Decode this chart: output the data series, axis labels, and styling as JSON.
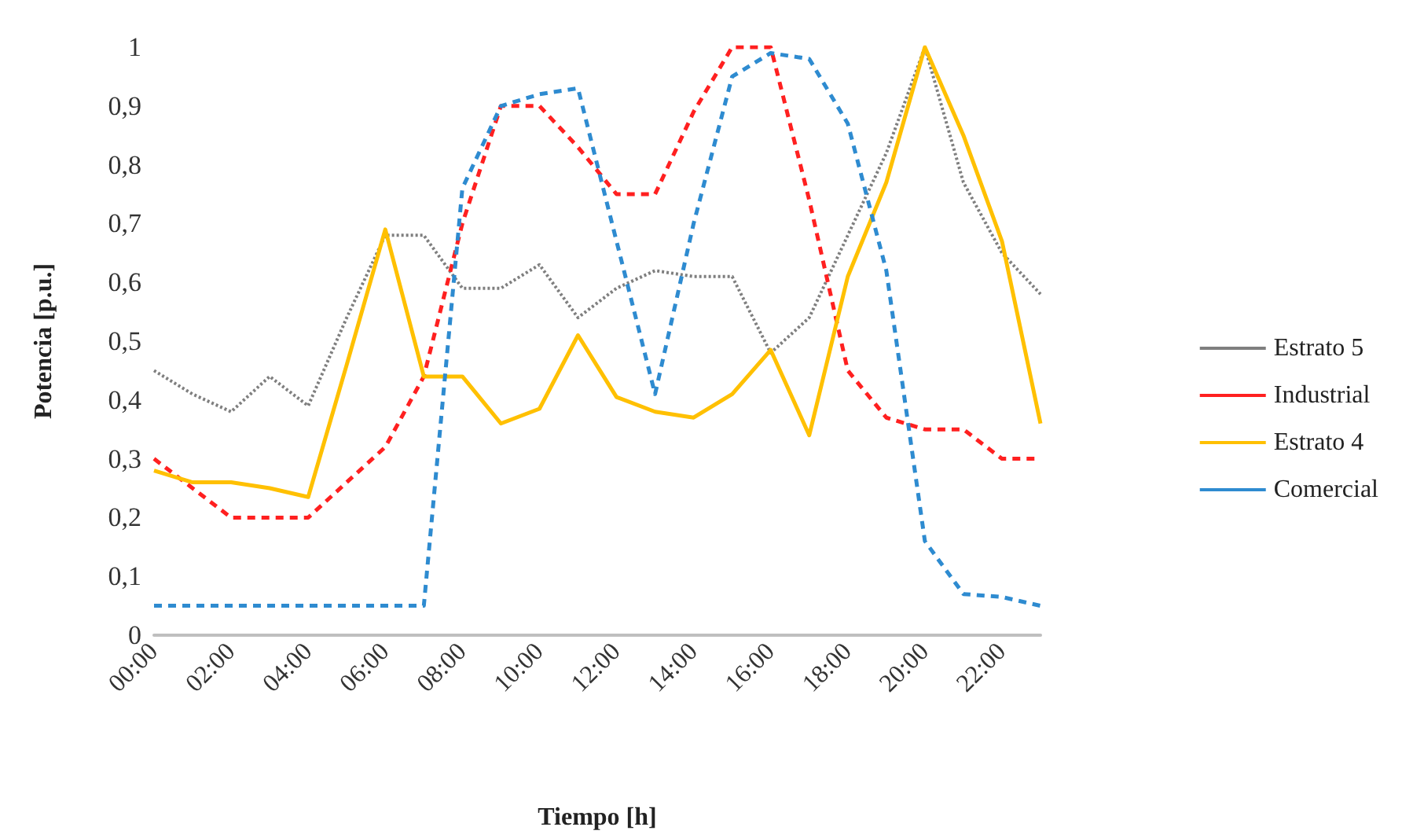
{
  "chart_data": {
    "type": "line",
    "xlabel": "Tiempo [h]",
    "ylabel": "Potencia [p.u.]",
    "categories": [
      "00:00",
      null,
      "02:00",
      null,
      "04:00",
      null,
      "06:00",
      null,
      "08:00",
      null,
      "10:00",
      null,
      "12:00",
      null,
      "14:00",
      null,
      "16:00",
      null,
      "18:00",
      null,
      "20:00",
      null,
      "22:00",
      null
    ],
    "ylim": [
      0,
      1
    ],
    "yticks": [
      0,
      {
        "value": 0.1,
        "label": "0,1"
      },
      {
        "value": 0.2,
        "label": "0,2"
      },
      {
        "value": 0.3,
        "label": "0,3"
      },
      {
        "value": 0.4,
        "label": "0,4"
      },
      {
        "value": 0.5,
        "label": "0,5"
      },
      {
        "value": 0.6,
        "label": "0,6"
      },
      {
        "value": 0.7,
        "label": "0,7"
      },
      {
        "value": 0.8,
        "label": "0,8"
      },
      {
        "value": 0.9,
        "label": "0,9"
      },
      1
    ],
    "grid": false,
    "legend": "right",
    "marker": "none",
    "series": [
      {
        "name": "Estrato 5",
        "color": "#7f7f7f",
        "line_style": "dotted",
        "values": [
          0.45,
          0.41,
          0.38,
          0.44,
          0.39,
          0.54,
          0.68,
          0.68,
          0.59,
          0.59,
          0.63,
          0.54,
          0.59,
          0.62,
          0.61,
          0.61,
          0.48,
          0.54,
          0.68,
          0.82,
          1.0,
          0.77,
          0.65,
          0.58
        ]
      },
      {
        "name": "Industrial",
        "color": "#ff2020",
        "line_style": "dashed",
        "values": [
          0.3,
          0.25,
          0.2,
          0.2,
          0.2,
          0.26,
          0.32,
          0.44,
          0.7,
          0.9,
          0.9,
          0.83,
          0.75,
          0.75,
          0.89,
          1.0,
          1.0,
          0.74,
          0.45,
          0.37,
          0.35,
          0.35,
          0.3,
          0.3
        ]
      },
      {
        "name": "Estrato 4",
        "color": "#ffc000",
        "line_style": "solid",
        "values": [
          0.28,
          0.26,
          0.26,
          0.25,
          0.235,
          0.46,
          0.69,
          0.44,
          0.44,
          0.36,
          0.385,
          0.51,
          0.405,
          0.38,
          0.37,
          0.41,
          0.485,
          0.34,
          0.61,
          0.77,
          1.0,
          0.85,
          0.67,
          0.36
        ]
      },
      {
        "name": "Comercial",
        "color": "#2e8bd0",
        "line_style": "dashed",
        "values": [
          0.05,
          0.05,
          0.05,
          0.05,
          0.05,
          0.05,
          0.05,
          0.05,
          0.76,
          0.9,
          0.92,
          0.93,
          0.67,
          0.41,
          0.7,
          0.95,
          0.99,
          0.98,
          0.87,
          0.62,
          0.16,
          0.07,
          0.065,
          0.05
        ]
      }
    ]
  }
}
